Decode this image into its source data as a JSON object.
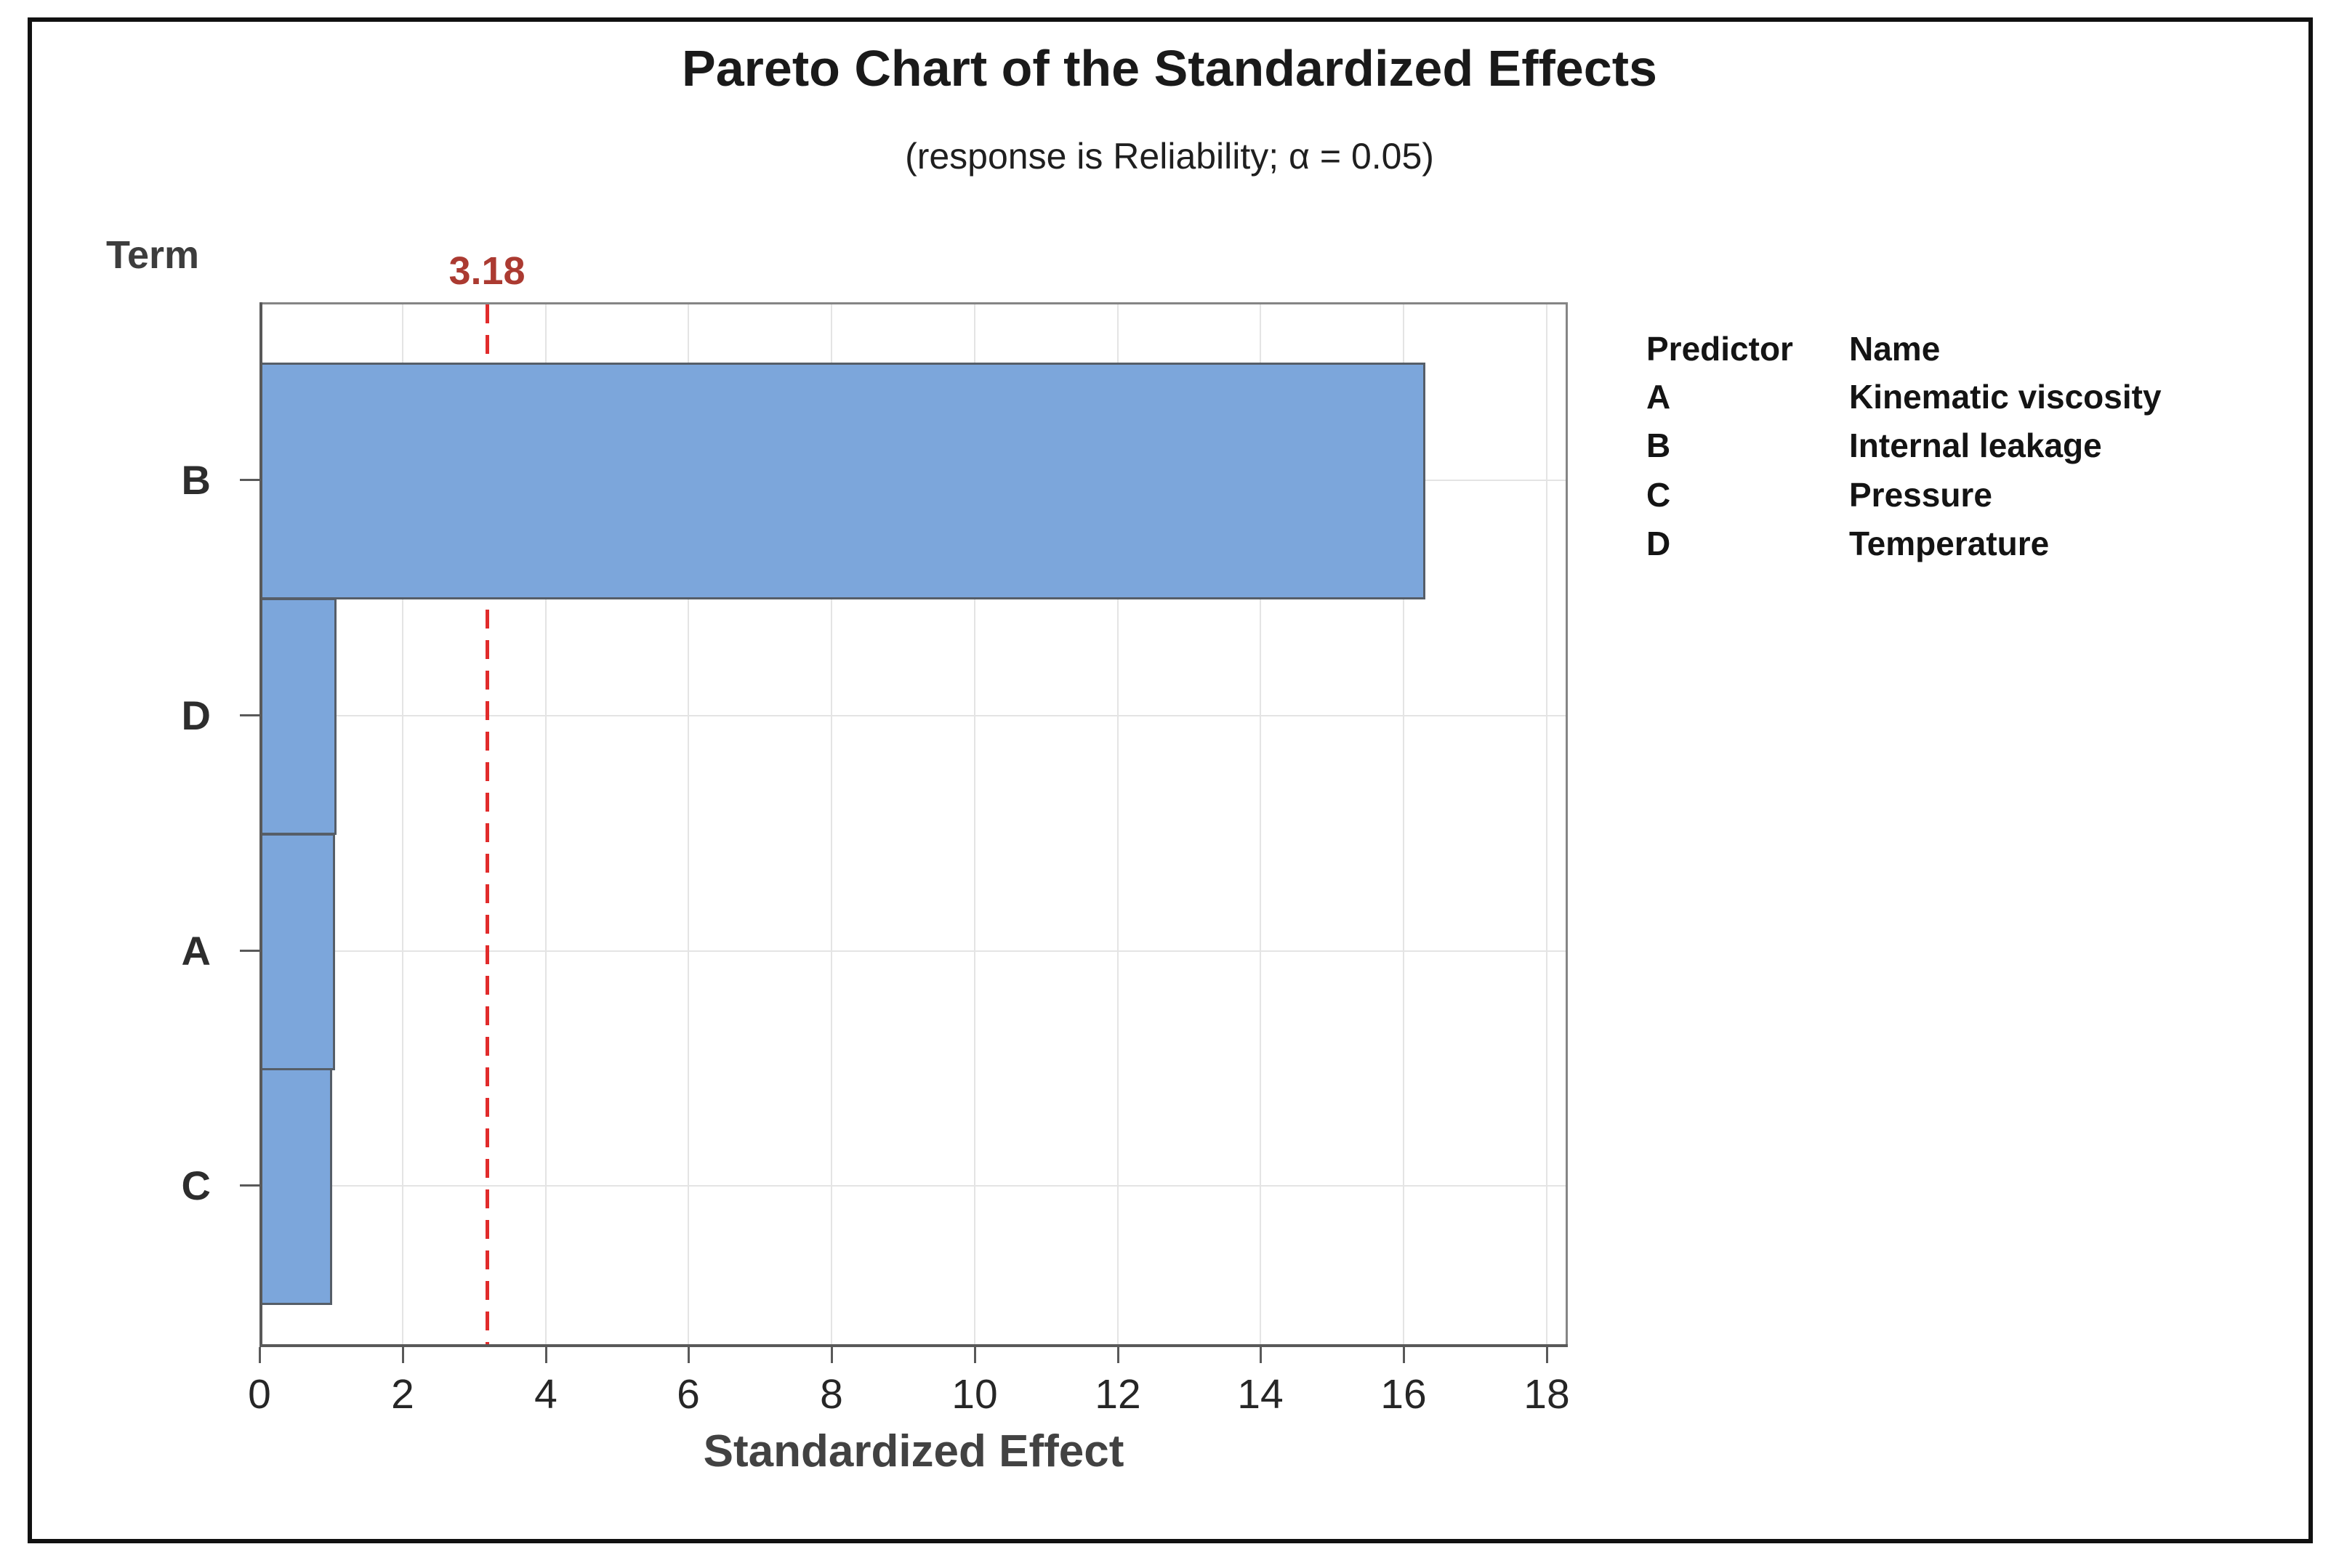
{
  "title": "Pareto Chart of the Standardized Effects",
  "subtitle": "(response is Reliability; α = 0.05)",
  "term_label": "Term",
  "reference_line": {
    "label": "3.18",
    "value": 3.18
  },
  "chart_data": {
    "type": "bar",
    "orientation": "horizontal",
    "title": "Pareto Chart of the Standardized Effects",
    "subtitle": "(response is Reliability; α = 0.05)",
    "categories": [
      "B",
      "D",
      "A",
      "C"
    ],
    "values": [
      16.3,
      1.08,
      1.06,
      1.02
    ],
    "xlabel": "Standardized Effect",
    "ylabel": "Term",
    "x_ticks": [
      0,
      2,
      4,
      6,
      8,
      10,
      12,
      14,
      16,
      18
    ],
    "xlim": [
      0,
      18.3
    ],
    "reference_value": 3.18,
    "grid": true,
    "legend_position": "right",
    "colors": {
      "bar_fill": "#7CA6DB",
      "bar_border": "#565E68",
      "reference_line": "#E12B2B",
      "reference_label": "#AB3A31",
      "grid_line": "#E4E4E4",
      "axis_line": "#595959",
      "frame_line": "#858585"
    }
  },
  "legend": {
    "headers": {
      "predictor": "Predictor",
      "name": "Name"
    },
    "rows": [
      {
        "predictor": "A",
        "name": "Kinematic viscosity"
      },
      {
        "predictor": "B",
        "name": "Internal leakage"
      },
      {
        "predictor": "C",
        "name": "Pressure"
      },
      {
        "predictor": "D",
        "name": "Temperature"
      }
    ]
  }
}
